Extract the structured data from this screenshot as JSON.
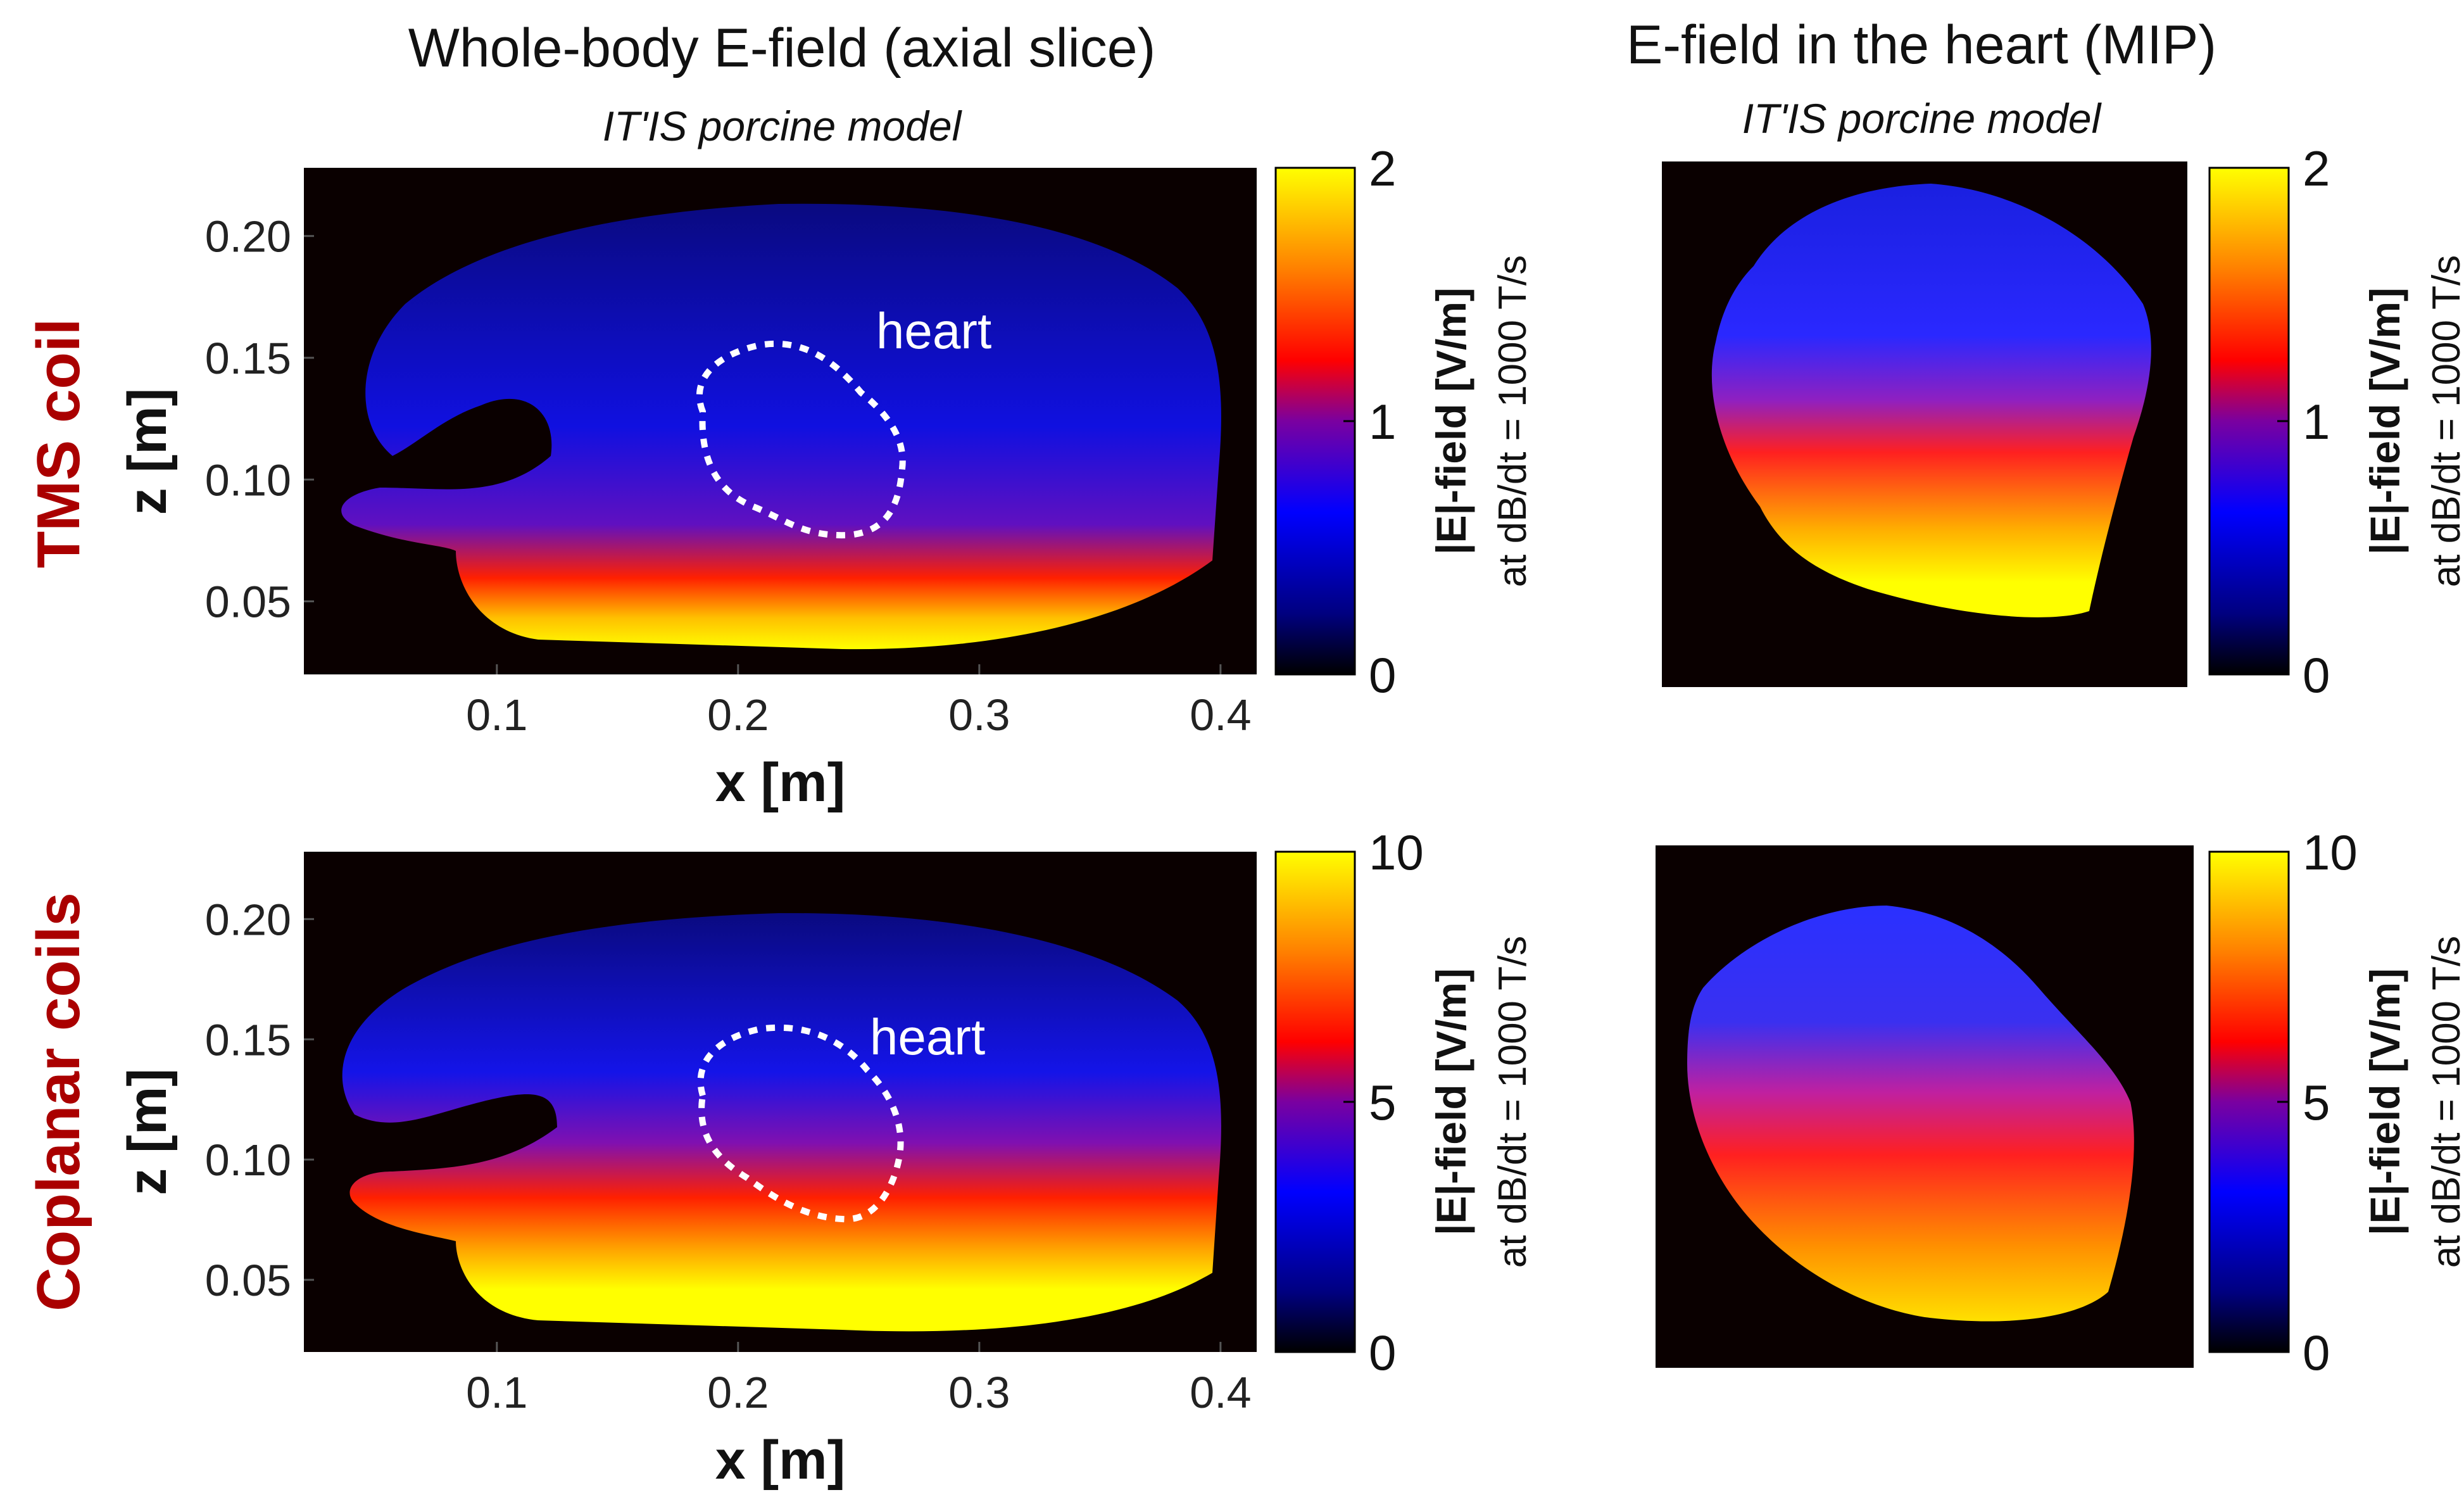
{
  "colors": {
    "background": "#ffffff",
    "panel_bg": "#0a0000",
    "row_label": "#aa0000",
    "text": "#111111",
    "outline": "#ffffff",
    "colormap": [
      "#000000",
      "#000080",
      "#0000ff",
      "#7a00a0",
      "#ff0000",
      "#ff8000",
      "#ffff00"
    ]
  },
  "columns": [
    {
      "title": "Whole-body E-field (axial slice)",
      "subtitle": "IT'IS porcine model"
    },
    {
      "title": "E-field in the heart (MIP)",
      "subtitle": "IT'IS porcine model"
    }
  ],
  "rows": [
    {
      "label": "TMS coil"
    },
    {
      "label": "Coplanar coils"
    }
  ],
  "heart_label": "heart",
  "colorbar_label": "|E|-field [V/m]",
  "colorbar_sublabel": "at dB/dt = 1000 T/s",
  "chart_data": [
    {
      "type": "heatmap",
      "panel": "whole-body, TMS coil",
      "title": "Whole-body E-field (axial slice)",
      "subtitle": "IT'IS porcine model",
      "row_label": "TMS coil",
      "xlabel": "x [m]",
      "ylabel": "z [m]",
      "xlim": [
        0.02,
        0.415
      ],
      "ylim": [
        0.02,
        0.228
      ],
      "xticks": [
        0.1,
        0.2,
        0.3,
        0.4
      ],
      "xtick_labels": [
        "0.1",
        "0.2",
        "0.3",
        "0.4"
      ],
      "yticks": [
        0.05,
        0.1,
        0.15,
        0.2
      ],
      "ytick_labels": [
        "0.05",
        "0.10",
        "0.15",
        "0.20"
      ],
      "annotation": "heart",
      "colorbar": {
        "min": 0,
        "max": 2,
        "ticks": [
          0,
          1,
          2
        ],
        "tick_labels": [
          "0",
          "1",
          "2"
        ],
        "label": "|E|-field [V/m]",
        "sublabel": "at dB/dt = 1000 T/s"
      }
    },
    {
      "type": "heatmap",
      "panel": "heart MIP, TMS coil",
      "title": "E-field in the heart (MIP)",
      "subtitle": "IT'IS porcine model",
      "colorbar": {
        "min": 0,
        "max": 2,
        "ticks": [
          0,
          1,
          2
        ],
        "tick_labels": [
          "0",
          "1",
          "2"
        ],
        "label": "|E|-field [V/m]",
        "sublabel": "at dB/dt = 1000 T/s"
      }
    },
    {
      "type": "heatmap",
      "panel": "whole-body, Coplanar coils",
      "row_label": "Coplanar coils",
      "xlabel": "x [m]",
      "ylabel": "z [m]",
      "xlim": [
        0.02,
        0.415
      ],
      "ylim": [
        0.02,
        0.228
      ],
      "xticks": [
        0.1,
        0.2,
        0.3,
        0.4
      ],
      "xtick_labels": [
        "0.1",
        "0.2",
        "0.3",
        "0.4"
      ],
      "yticks": [
        0.05,
        0.1,
        0.15,
        0.2
      ],
      "ytick_labels": [
        "0.05",
        "0.10",
        "0.15",
        "0.20"
      ],
      "annotation": "heart",
      "colorbar": {
        "min": 0,
        "max": 10,
        "ticks": [
          0,
          5,
          10
        ],
        "tick_labels": [
          "0",
          "5",
          "10"
        ],
        "label": "|E|-field [V/m]",
        "sublabel": "at dB/dt = 1000 T/s"
      }
    },
    {
      "type": "heatmap",
      "panel": "heart MIP, Coplanar coils",
      "colorbar": {
        "min": 0,
        "max": 10,
        "ticks": [
          0,
          5,
          10
        ],
        "tick_labels": [
          "0",
          "5",
          "10"
        ],
        "label": "|E|-field [V/m]",
        "sublabel": "at dB/dt = 1000 T/s"
      }
    }
  ]
}
